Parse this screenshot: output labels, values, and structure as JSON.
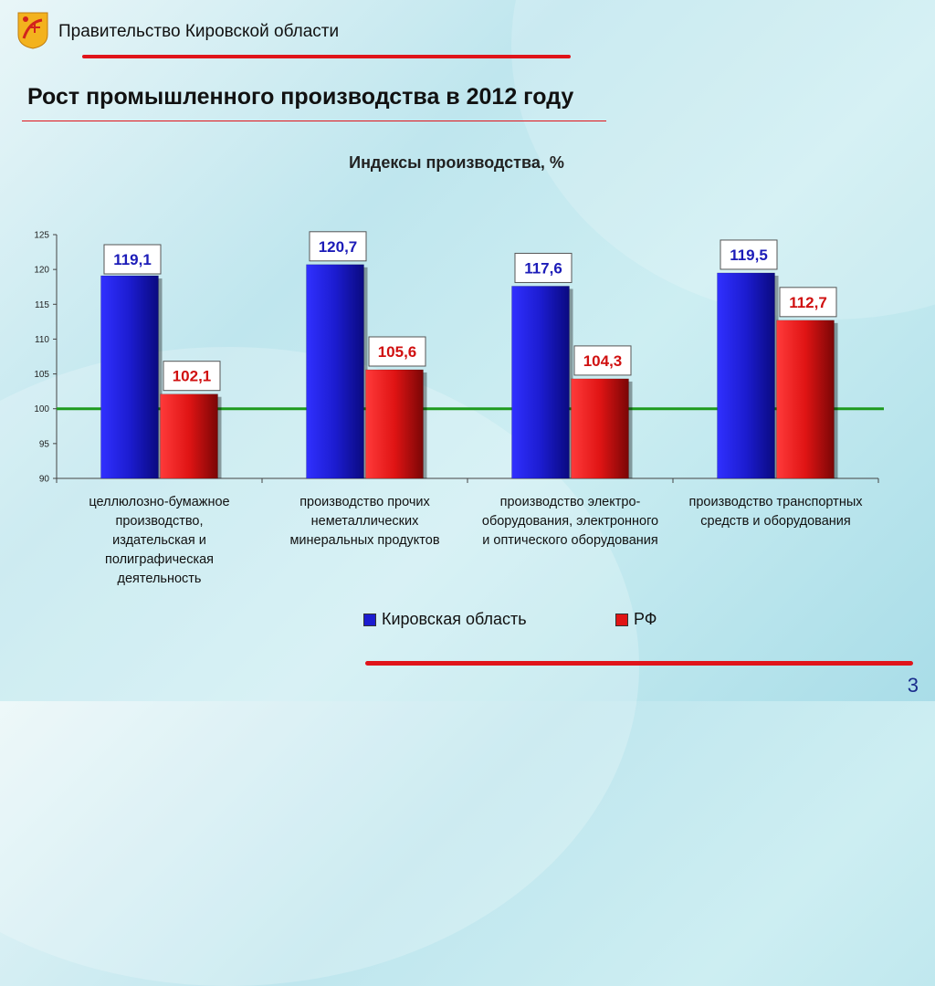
{
  "header": {
    "org": "Правительство Кировской области",
    "title": "Рост промышленного производства в 2012 году",
    "page_number": "3"
  },
  "colors": {
    "series1": "#1c1cd0",
    "series2": "#e01414",
    "accent_line": "#e0141a",
    "reference_line": "#1e9a1e",
    "label_blue": "#1c1cb8",
    "label_red": "#d01010"
  },
  "chart_data": {
    "type": "bar",
    "title": "Индексы производства, %",
    "categories": [
      "целлюлозно-бумажное производство, издательская и полиграфическая деятельность",
      "производство прочих неметаллических минеральных продуктов",
      "производство электро-оборудования, электронного и оптического оборудования",
      "производство транспортных средств и оборудования"
    ],
    "series": [
      {
        "name": "Кировская область",
        "values": [
          119.1,
          120.7,
          117.6,
          119.5
        ],
        "labels": [
          "119,1",
          "120,7",
          "117,6",
          "119,5"
        ]
      },
      {
        "name": "РФ",
        "values": [
          102.1,
          105.6,
          104.3,
          112.7
        ],
        "labels": [
          "102,1",
          "105,6",
          "104,3",
          "112,7"
        ]
      }
    ],
    "ylim": [
      90,
      125
    ],
    "yticks": [
      "90",
      "95",
      "100",
      "105",
      "110",
      "115",
      "120",
      "125"
    ],
    "reference_value": 100,
    "legend_position": "bottom",
    "grid": false
  }
}
